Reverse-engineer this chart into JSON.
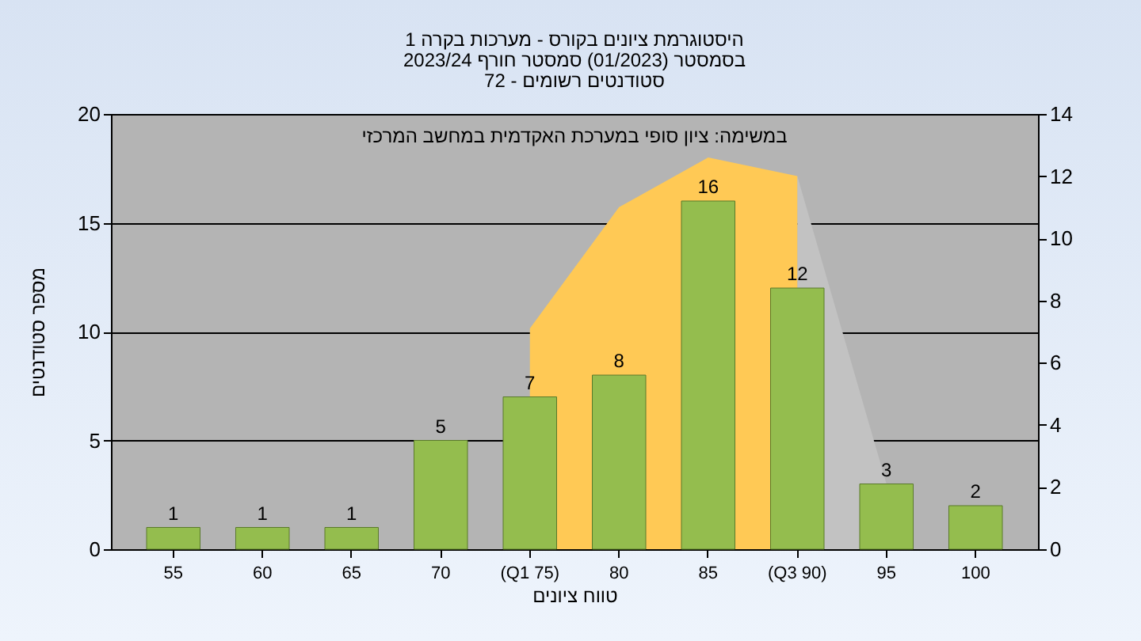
{
  "chart_data": {
    "type": "bar",
    "title": [
      "היסטוגרמת ציונים בקורס - מערכות בקרה 1",
      "בסמסטר  (01/2023)  סמסטר חורף 2023/24",
      "סטודנטים רשומים - 72"
    ],
    "xlabel": "טווח ציונים",
    "ylabel": "מספר סטודנטים",
    "annotations": [
      "במשימה: ציון סופי במערכת האקדמית במחשב המרכזי"
    ],
    "categories": [
      "55",
      "60",
      "65",
      "70",
      "(Q1 75)",
      "80",
      "85",
      "(Q3 90)",
      "95",
      "100"
    ],
    "series": [
      {
        "type": "area",
        "axis": "y2",
        "color": "#c2c2c2",
        "values": [
          null,
          null,
          null,
          null,
          null,
          null,
          null,
          12,
          2.1,
          null
        ]
      },
      {
        "type": "area",
        "axis": "y2",
        "color": "#ffc955",
        "values": [
          null,
          null,
          null,
          null,
          7.1,
          11,
          12.6,
          12,
          null,
          null
        ]
      },
      {
        "color": "#94bd4e",
        "values": [
          1,
          1,
          1,
          5,
          7,
          8,
          16,
          12,
          3,
          2
        ],
        "value_labels": [
          "1",
          "1",
          "1",
          "5",
          "7",
          "8",
          "16",
          "12",
          "3",
          "2"
        ]
      }
    ],
    "ylim": [
      0,
      20
    ],
    "yticks": [
      0,
      5,
      10,
      15,
      20
    ],
    "y2lim": [
      0,
      14
    ],
    "y2ticks": [
      0,
      2,
      4,
      6,
      8,
      10,
      12,
      14
    ],
    "grid": "y"
  }
}
